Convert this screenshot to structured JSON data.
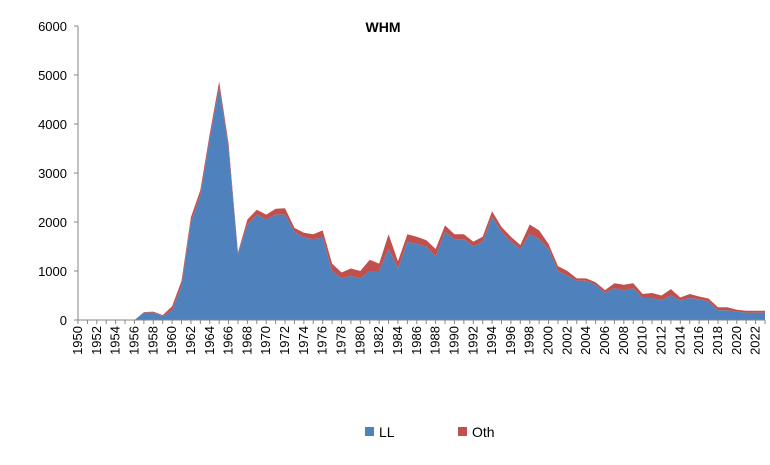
{
  "chart_data": {
    "type": "area",
    "stacked": true,
    "title": "WHM",
    "xlabel": "",
    "ylabel": "",
    "x": [
      1950,
      1951,
      1952,
      1953,
      1954,
      1955,
      1956,
      1957,
      1958,
      1959,
      1960,
      1961,
      1962,
      1963,
      1964,
      1965,
      1966,
      1967,
      1968,
      1969,
      1970,
      1971,
      1972,
      1973,
      1974,
      1975,
      1976,
      1977,
      1978,
      1979,
      1980,
      1981,
      1982,
      1983,
      1984,
      1985,
      1986,
      1987,
      1988,
      1989,
      1990,
      1991,
      1992,
      1993,
      1994,
      1995,
      1996,
      1997,
      1998,
      1999,
      2000,
      2001,
      2002,
      2003,
      2004,
      2005,
      2006,
      2007,
      2008,
      2009,
      2010,
      2011,
      2012,
      2013,
      2014,
      2015,
      2016,
      2017,
      2018,
      2019,
      2020,
      2021,
      2022,
      2023
    ],
    "xticks": [
      "1950",
      "1952",
      "1954",
      "1956",
      "1958",
      "1960",
      "1962",
      "1964",
      "1966",
      "1968",
      "1970",
      "1972",
      "1974",
      "1976",
      "1978",
      "1980",
      "1982",
      "1984",
      "1986",
      "1988",
      "1990",
      "1992",
      "1994",
      "1996",
      "1998",
      "2000",
      "2002",
      "2004",
      "2006",
      "2008",
      "2010",
      "2012",
      "2014",
      "2016",
      "2018",
      "2020",
      "2022"
    ],
    "ylim": [
      0,
      6000
    ],
    "yticks": [
      "0",
      "1000",
      "2000",
      "3000",
      "4000",
      "5000",
      "6000"
    ],
    "legend_position": "bottom",
    "series": [
      {
        "name": "LL",
        "color": "#4f81bd",
        "values": [
          0,
          0,
          0,
          0,
          0,
          0,
          0,
          150,
          150,
          80,
          200,
          700,
          2000,
          2550,
          3700,
          4750,
          3500,
          1350,
          1950,
          2150,
          2050,
          2150,
          2150,
          1800,
          1680,
          1650,
          1680,
          1000,
          850,
          900,
          850,
          1000,
          1000,
          1450,
          1050,
          1600,
          1550,
          1500,
          1300,
          1800,
          1650,
          1650,
          1500,
          1600,
          2100,
          1800,
          1600,
          1450,
          1750,
          1650,
          1450,
          1000,
          900,
          800,
          800,
          720,
          550,
          650,
          600,
          650,
          450,
          450,
          400,
          500,
          400,
          450,
          420,
          380,
          200,
          200,
          170,
          150,
          150,
          150
        ]
      },
      {
        "name": "Oth",
        "color": "#c0504d",
        "values": [
          0,
          0,
          0,
          0,
          0,
          0,
          0,
          10,
          20,
          20,
          80,
          100,
          100,
          100,
          100,
          120,
          100,
          30,
          100,
          100,
          100,
          120,
          130,
          80,
          100,
          100,
          150,
          150,
          120,
          150,
          150,
          230,
          150,
          300,
          150,
          150,
          150,
          130,
          150,
          130,
          100,
          100,
          100,
          100,
          120,
          100,
          100,
          80,
          200,
          180,
          100,
          100,
          100,
          50,
          50,
          50,
          60,
          100,
          120,
          100,
          80,
          100,
          100,
          130,
          60,
          80,
          60,
          60,
          60,
          60,
          40,
          40,
          40,
          40
        ]
      }
    ]
  }
}
